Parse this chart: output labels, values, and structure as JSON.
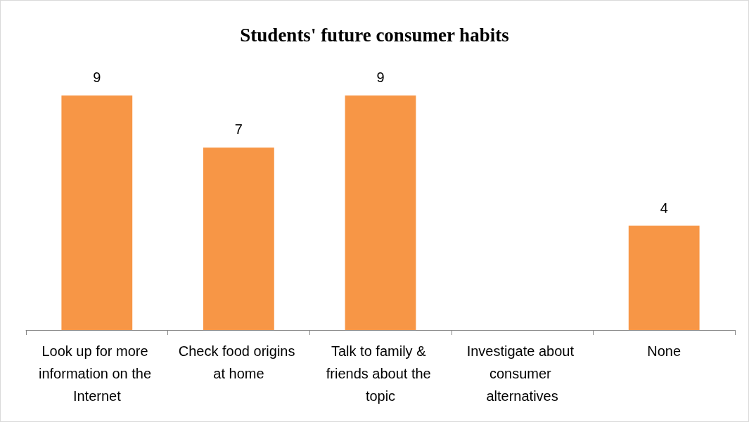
{
  "chart_data": {
    "type": "bar",
    "title": "Students' future consumer habits",
    "categories": [
      "Look up for more information on the Internet",
      "Check food origins at home",
      "Talk to family & friends about the topic",
      "Investigate about consumer alternatives",
      "None"
    ],
    "values": [
      9,
      7,
      9,
      0,
      4
    ],
    "value_labels": [
      "9",
      "7",
      "9",
      null,
      "4"
    ],
    "color": "#f79646"
  }
}
